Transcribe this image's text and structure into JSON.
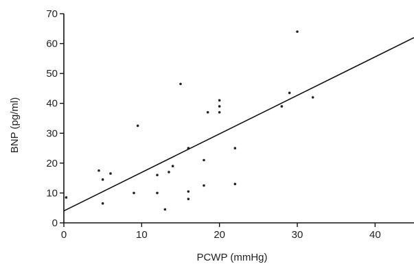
{
  "chart_data": {
    "type": "scatter",
    "title": "",
    "xlabel": "PCWP (mmHg)",
    "ylabel": "BNP (pg/ml)",
    "xlim": [
      0,
      45
    ],
    "ylim": [
      0,
      70
    ],
    "xticks": [
      0,
      10,
      20,
      30,
      40
    ],
    "yticks": [
      0,
      10,
      20,
      30,
      40,
      50,
      60,
      70
    ],
    "grid": false,
    "points": [
      {
        "x": 0.3,
        "y": 8.5
      },
      {
        "x": 4.5,
        "y": 17.5
      },
      {
        "x": 5.0,
        "y": 14.5
      },
      {
        "x": 5.0,
        "y": 6.5
      },
      {
        "x": 6.0,
        "y": 16.5
      },
      {
        "x": 9.0,
        "y": 10.0
      },
      {
        "x": 9.5,
        "y": 32.5
      },
      {
        "x": 12.0,
        "y": 10.0
      },
      {
        "x": 12.0,
        "y": 16.0
      },
      {
        "x": 13.0,
        "y": 4.5
      },
      {
        "x": 13.5,
        "y": 17.0
      },
      {
        "x": 14.0,
        "y": 19.0
      },
      {
        "x": 15.0,
        "y": 46.5
      },
      {
        "x": 16.0,
        "y": 25.0
      },
      {
        "x": 16.0,
        "y": 10.5
      },
      {
        "x": 16.0,
        "y": 8.0
      },
      {
        "x": 18.0,
        "y": 21.0
      },
      {
        "x": 18.0,
        "y": 12.5
      },
      {
        "x": 18.5,
        "y": 37.0
      },
      {
        "x": 20.0,
        "y": 41.0
      },
      {
        "x": 20.0,
        "y": 39.0
      },
      {
        "x": 20.0,
        "y": 37.0
      },
      {
        "x": 22.0,
        "y": 25.0
      },
      {
        "x": 22.0,
        "y": 13.0
      },
      {
        "x": 28.0,
        "y": 39.0
      },
      {
        "x": 29.0,
        "y": 43.5
      },
      {
        "x": 30.0,
        "y": 64.0
      },
      {
        "x": 32.0,
        "y": 42.0
      }
    ],
    "regression_line": {
      "x": [
        0,
        45
      ],
      "y": [
        4.0,
        62.0
      ]
    }
  }
}
